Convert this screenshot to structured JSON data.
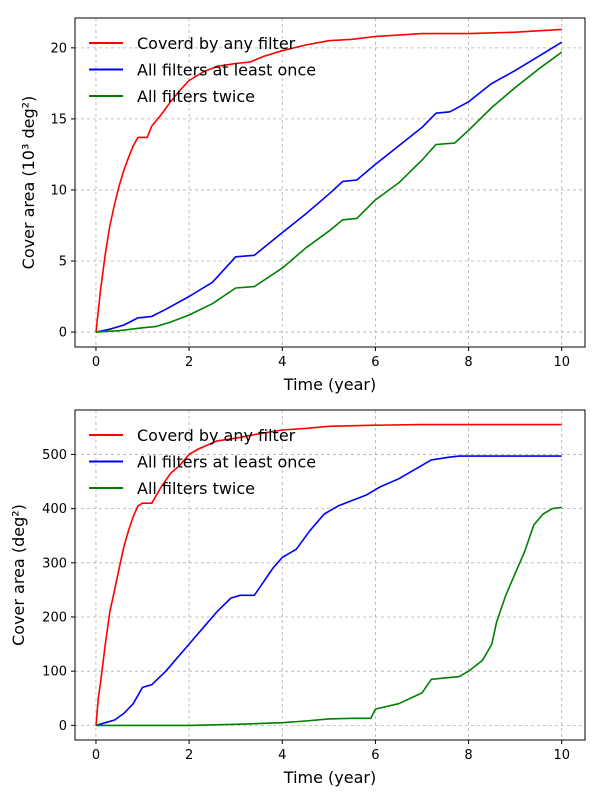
{
  "chart_data": [
    {
      "type": "line",
      "xlabel": "Time (year)",
      "ylabel": "Cover area (10^3 deg^2)",
      "xlim": [
        -0.45,
        10.5
      ],
      "ylim": [
        -1.05,
        22.1
      ],
      "x_ticks": [
        0,
        2,
        4,
        6,
        8,
        10
      ],
      "y_ticks": [
        0,
        5,
        10,
        15,
        20
      ],
      "grid": true,
      "legend_position": "top-left",
      "series": [
        {
          "name": "Coverd by any filter",
          "color": "#ff0000",
          "points": [
            [
              0,
              0
            ],
            [
              0.05,
              1.5
            ],
            [
              0.1,
              3
            ],
            [
              0.2,
              5.5
            ],
            [
              0.3,
              7.5
            ],
            [
              0.4,
              9
            ],
            [
              0.5,
              10.3
            ],
            [
              0.6,
              11.4
            ],
            [
              0.7,
              12.3
            ],
            [
              0.8,
              13.1
            ],
            [
              0.9,
              13.7
            ],
            [
              1.1,
              13.7
            ],
            [
              1.2,
              14.5
            ],
            [
              1.4,
              15.3
            ],
            [
              1.6,
              16.2
            ],
            [
              1.8,
              17
            ],
            [
              2,
              17.7
            ],
            [
              2.3,
              18.3
            ],
            [
              2.6,
              18.7
            ],
            [
              3,
              18.9
            ],
            [
              3.3,
              19
            ],
            [
              3.6,
              19.4
            ],
            [
              4,
              19.8
            ],
            [
              4.5,
              20.2
            ],
            [
              5,
              20.5
            ],
            [
              5.5,
              20.6
            ],
            [
              6,
              20.8
            ],
            [
              7,
              21
            ],
            [
              8,
              21
            ],
            [
              9,
              21.1
            ],
            [
              10,
              21.3
            ]
          ]
        },
        {
          "name": "All filters at least once",
          "color": "#0000ff",
          "points": [
            [
              0,
              0
            ],
            [
              0.3,
              0.2
            ],
            [
              0.6,
              0.5
            ],
            [
              0.9,
              1
            ],
            [
              1.2,
              1.1
            ],
            [
              1.5,
              1.6
            ],
            [
              2,
              2.5
            ],
            [
              2.5,
              3.5
            ],
            [
              3,
              5.3
            ],
            [
              3.4,
              5.4
            ],
            [
              4,
              7
            ],
            [
              4.5,
              8.3
            ],
            [
              5,
              9.7
            ],
            [
              5.3,
              10.6
            ],
            [
              5.6,
              10.7
            ],
            [
              6,
              11.8
            ],
            [
              6.5,
              13.1
            ],
            [
              7,
              14.4
            ],
            [
              7.3,
              15.4
            ],
            [
              7.6,
              15.5
            ],
            [
              8,
              16.2
            ],
            [
              8.5,
              17.5
            ],
            [
              9,
              18.4
            ],
            [
              9.5,
              19.4
            ],
            [
              10,
              20.4
            ]
          ]
        },
        {
          "name": "All filters twice",
          "color": "#008000",
          "points": [
            [
              0,
              0
            ],
            [
              0.5,
              0.1
            ],
            [
              1,
              0.3
            ],
            [
              1.3,
              0.4
            ],
            [
              1.6,
              0.7
            ],
            [
              2,
              1.2
            ],
            [
              2.5,
              2
            ],
            [
              3,
              3.1
            ],
            [
              3.4,
              3.2
            ],
            [
              4,
              4.5
            ],
            [
              4.5,
              5.9
            ],
            [
              5,
              7.1
            ],
            [
              5.3,
              7.9
            ],
            [
              5.6,
              8.0
            ],
            [
              6,
              9.3
            ],
            [
              6.5,
              10.5
            ],
            [
              7,
              12.1
            ],
            [
              7.3,
              13.2
            ],
            [
              7.7,
              13.3
            ],
            [
              8,
              14.2
            ],
            [
              8.5,
              15.8
            ],
            [
              9,
              17.2
            ],
            [
              9.5,
              18.5
            ],
            [
              10,
              19.7
            ]
          ]
        }
      ]
    },
    {
      "type": "line",
      "xlabel": "Time (year)",
      "ylabel": "Cover area (deg^2)",
      "xlim": [
        -0.45,
        10.5
      ],
      "ylim": [
        -27,
        582
      ],
      "x_ticks": [
        0,
        2,
        4,
        6,
        8,
        10
      ],
      "y_ticks": [
        0,
        100,
        200,
        300,
        400,
        500
      ],
      "grid": true,
      "legend_position": "top-left",
      "series": [
        {
          "name": "Coverd by any filter",
          "color": "#ff0000",
          "points": [
            [
              0,
              0
            ],
            [
              0.05,
              50
            ],
            [
              0.1,
              80
            ],
            [
              0.2,
              150
            ],
            [
              0.3,
              210
            ],
            [
              0.4,
              250
            ],
            [
              0.5,
              290
            ],
            [
              0.6,
              330
            ],
            [
              0.7,
              360
            ],
            [
              0.8,
              385
            ],
            [
              0.9,
              405
            ],
            [
              1.0,
              410
            ],
            [
              1.2,
              410
            ],
            [
              1.4,
              440
            ],
            [
              1.6,
              465
            ],
            [
              1.8,
              480
            ],
            [
              2,
              500
            ],
            [
              2.2,
              510
            ],
            [
              2.6,
              525
            ],
            [
              3,
              530
            ],
            [
              3.5,
              538
            ],
            [
              4,
              545
            ],
            [
              4.5,
              548
            ],
            [
              5,
              552
            ],
            [
              6,
              554
            ],
            [
              7,
              555
            ],
            [
              8,
              555
            ],
            [
              9,
              555
            ],
            [
              10,
              555
            ]
          ]
        },
        {
          "name": "All filters at least once",
          "color": "#0000ff",
          "points": [
            [
              0,
              0
            ],
            [
              0.2,
              5
            ],
            [
              0.4,
              10
            ],
            [
              0.6,
              22
            ],
            [
              0.8,
              40
            ],
            [
              1,
              70
            ],
            [
              1.2,
              75
            ],
            [
              1.5,
              100
            ],
            [
              1.8,
              130
            ],
            [
              2,
              150
            ],
            [
              2.3,
              180
            ],
            [
              2.6,
              210
            ],
            [
              2.9,
              235
            ],
            [
              3.1,
              240
            ],
            [
              3.4,
              240
            ],
            [
              3.6,
              265
            ],
            [
              3.8,
              290
            ],
            [
              4,
              310
            ],
            [
              4.3,
              325
            ],
            [
              4.6,
              360
            ],
            [
              4.9,
              390
            ],
            [
              5.2,
              405
            ],
            [
              5.5,
              415
            ],
            [
              5.8,
              425
            ],
            [
              6.1,
              440
            ],
            [
              6.5,
              455
            ],
            [
              6.8,
              470
            ],
            [
              7.2,
              490
            ],
            [
              7.6,
              495
            ],
            [
              7.8,
              497
            ],
            [
              8,
              497
            ],
            [
              9,
              497
            ],
            [
              10,
              497
            ]
          ]
        },
        {
          "name": "All filters twice",
          "color": "#008000",
          "points": [
            [
              0,
              0
            ],
            [
              1,
              0
            ],
            [
              2,
              0
            ],
            [
              3,
              2
            ],
            [
              4,
              5
            ],
            [
              4.5,
              8
            ],
            [
              5,
              12
            ],
            [
              5.5,
              13
            ],
            [
              5.9,
              13
            ],
            [
              6,
              30
            ],
            [
              6.5,
              40
            ],
            [
              7,
              60
            ],
            [
              7.2,
              85
            ],
            [
              7.8,
              90
            ],
            [
              8,
              100
            ],
            [
              8.3,
              120
            ],
            [
              8.5,
              150
            ],
            [
              8.6,
              190
            ],
            [
              8.8,
              240
            ],
            [
              9,
              280
            ],
            [
              9.2,
              320
            ],
            [
              9.4,
              370
            ],
            [
              9.6,
              390
            ],
            [
              9.8,
              400
            ],
            [
              10,
              402
            ]
          ]
        }
      ]
    }
  ]
}
